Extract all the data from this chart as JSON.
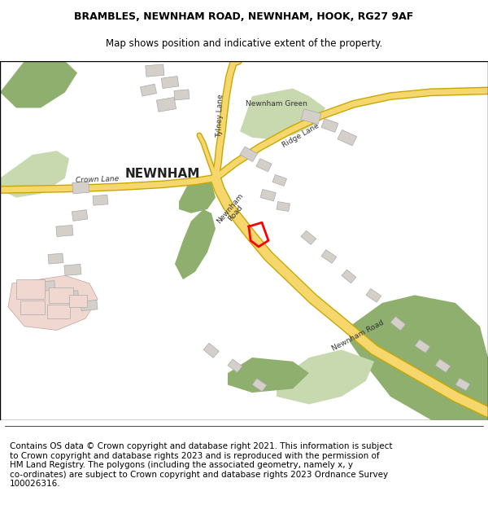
{
  "title": "BRAMBLES, NEWNHAM ROAD, NEWNHAM, HOOK, RG27 9AF",
  "subtitle": "Map shows position and indicative extent of the property.",
  "footer": "Contains OS data © Crown copyright and database right 2021. This information is subject\nto Crown copyright and database rights 2023 and is reproduced with the permission of\nHM Land Registry. The polygons (including the associated geometry, namely x, y\nco-ordinates) are subject to Crown copyright and database rights 2023 Ordnance Survey\n100026316.",
  "background_color": "#f8f8f8",
  "map_background": "#f2efe9",
  "title_fontsize": 9,
  "footer_fontsize": 7.5,
  "road_color_yellow": "#f5d76e",
  "road_outline": "#c8a800",
  "green_color": "#8faf6e",
  "light_green": "#c8d9b0",
  "building_color": "#d4cfc9",
  "pink_color": "#f0d8d0",
  "plot_outline_color": "#ff0000"
}
